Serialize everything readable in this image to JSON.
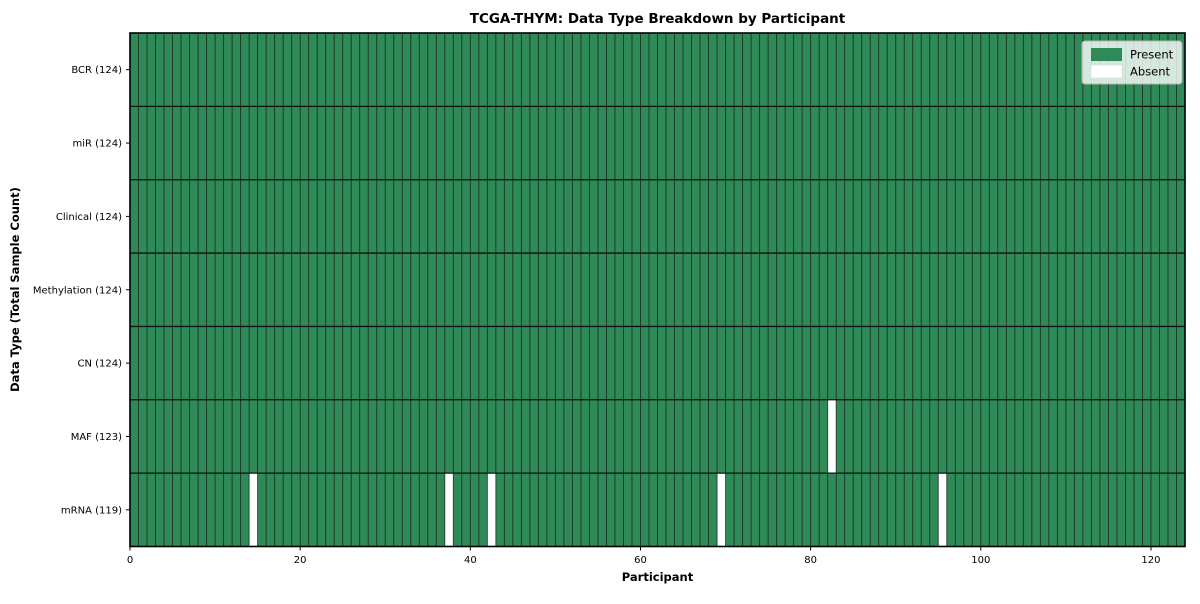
{
  "chart_data": {
    "type": "heatmap",
    "title": "TCGA-THYM: Data Type Breakdown by Participant",
    "xlabel": "Participant",
    "ylabel": "Data Type (Total Sample Count)",
    "xlim": [
      0,
      124
    ],
    "x_ticks": [
      0,
      20,
      40,
      60,
      80,
      100,
      120
    ],
    "n_participants": 124,
    "grid": true,
    "legend_position": "upper right",
    "legend": [
      {
        "label": "Present",
        "color": "#2e8b57"
      },
      {
        "label": "Absent",
        "color": "#ffffff"
      }
    ],
    "colors": {
      "present": "#2e8b57",
      "absent": "#ffffff",
      "grid": "#1a1a1a",
      "row_separator": "#111111",
      "spine": "#000000",
      "legend_bg": "rgba(255,255,255,0.8)",
      "legend_border": "#b5b5b5"
    },
    "rows": [
      {
        "label": "BCR (124)",
        "data_type": "BCR",
        "total_sample_count": 124,
        "absent_participants": []
      },
      {
        "label": "miR (124)",
        "data_type": "miR",
        "total_sample_count": 124,
        "absent_participants": []
      },
      {
        "label": "Clinical (124)",
        "data_type": "Clinical",
        "total_sample_count": 124,
        "absent_participants": []
      },
      {
        "label": "Methylation (124)",
        "data_type": "Methylation",
        "total_sample_count": 124,
        "absent_participants": []
      },
      {
        "label": "CN (124)",
        "data_type": "CN",
        "total_sample_count": 124,
        "absent_participants": []
      },
      {
        "label": "MAF (123)",
        "data_type": "MAF",
        "total_sample_count": 123,
        "absent_participants": [
          82
        ]
      },
      {
        "label": "mRNA (119)",
        "data_type": "mRNA",
        "total_sample_count": 119,
        "absent_participants": [
          14,
          37,
          42,
          69,
          95
        ]
      }
    ]
  }
}
